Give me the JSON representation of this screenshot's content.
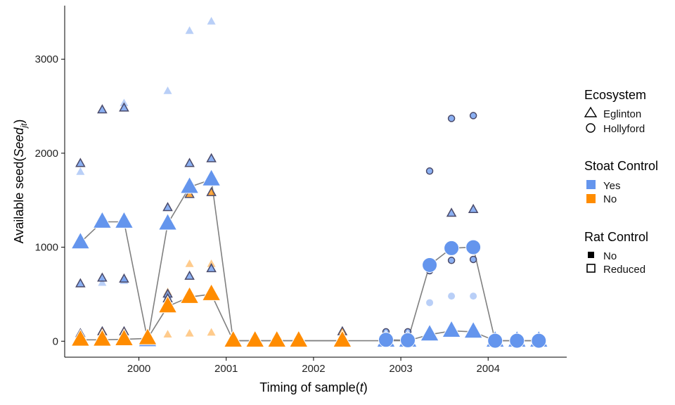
{
  "chart_data": {
    "type": "scatter",
    "title": "",
    "xlabel": "Timing of sample",
    "xlabel_symbol": "t",
    "ylabel": "Available seed",
    "ylabel_symbol": "Seed",
    "ylabel_subscript": "jt",
    "xlim": [
      1999.15,
      2004.9
    ],
    "ylim": [
      -170,
      3570
    ],
    "x_ticks": [
      2000,
      2001,
      2002,
      2003,
      2004
    ],
    "x_tick_labels": [
      "2000",
      "2001",
      "2002",
      "2003",
      "2004"
    ],
    "y_ticks": [
      0,
      1000,
      2000,
      3000
    ],
    "y_tick_labels": [
      "0",
      "1000",
      "2000",
      "3000"
    ],
    "grid": false,
    "legend_position": "right",
    "colors": {
      "Yes": "#6495ED",
      "No": "#FF8C00",
      "line": "#808080",
      "outline": "#4a4a6a"
    },
    "legend": {
      "ecosystem": {
        "title": "Ecosystem",
        "items": [
          {
            "label": "Eglinton",
            "shape": "triangle"
          },
          {
            "label": "Hollyford",
            "shape": "circle"
          }
        ]
      },
      "stoat": {
        "title": "Stoat Control",
        "items": [
          {
            "label": "Yes",
            "color": "#6495ED"
          },
          {
            "label": "No",
            "color": "#FF8C00"
          }
        ]
      },
      "rat": {
        "title": "Rat Control",
        "items": [
          {
            "label": "No",
            "style": "filled"
          },
          {
            "label": "Reduced",
            "style": "open"
          }
        ]
      }
    },
    "series": [
      {
        "ecosystem": "Eglinton",
        "stoat_control": "Yes",
        "mean": [
          [
            1999.33,
            1050
          ],
          [
            1999.58,
            1270
          ],
          [
            1999.83,
            1270
          ],
          [
            2000.1,
            10
          ],
          [
            2000.33,
            1250
          ],
          [
            2000.58,
            1640
          ],
          [
            2000.83,
            1720
          ],
          [
            2001.08,
            5
          ],
          [
            2001.33,
            5
          ],
          [
            2001.58,
            5
          ],
          [
            2001.83,
            5
          ],
          [
            2002.33,
            5
          ],
          [
            2002.83,
            5
          ],
          [
            2003.08,
            5
          ],
          [
            2003.33,
            70
          ],
          [
            2003.58,
            110
          ],
          [
            2003.83,
            100
          ],
          [
            2004.08,
            5
          ],
          [
            2004.33,
            5
          ],
          [
            2004.58,
            5
          ]
        ],
        "obs_rat_no": [
          [
            1999.33,
            1800
          ],
          [
            1999.58,
            620
          ],
          [
            1999.83,
            2530
          ],
          [
            1999.83,
            640
          ],
          [
            2000.33,
            2660
          ],
          [
            2000.33,
            480
          ],
          [
            2000.58,
            3300
          ],
          [
            2000.83,
            3400
          ]
        ],
        "obs_rat_reduced": [
          [
            1999.33,
            1890
          ],
          [
            1999.33,
            610
          ],
          [
            1999.58,
            2460
          ],
          [
            1999.58,
            670
          ],
          [
            1999.83,
            2480
          ],
          [
            1999.83,
            660
          ],
          [
            2000.33,
            1420
          ],
          [
            2000.33,
            500
          ],
          [
            2000.58,
            1890
          ],
          [
            2000.58,
            690
          ],
          [
            2000.83,
            1940
          ],
          [
            2000.83,
            770
          ],
          [
            2003.58,
            1360
          ],
          [
            2003.83,
            1400
          ]
        ]
      },
      {
        "ecosystem": "Eglinton",
        "stoat_control": "No",
        "mean": [
          [
            1999.33,
            15
          ],
          [
            1999.58,
            15
          ],
          [
            1999.83,
            20
          ],
          [
            2000.1,
            30
          ],
          [
            2000.33,
            370
          ],
          [
            2000.58,
            470
          ],
          [
            2000.83,
            500
          ],
          [
            2001.08,
            5
          ],
          [
            2001.33,
            5
          ],
          [
            2001.58,
            5
          ],
          [
            2001.83,
            5
          ],
          [
            2002.33,
            5
          ]
        ],
        "obs_rat_no": [
          [
            2000.33,
            70
          ],
          [
            2000.33,
            520
          ],
          [
            2000.58,
            820
          ],
          [
            2000.58,
            80
          ],
          [
            2000.83,
            820
          ],
          [
            2000.83,
            90
          ]
        ],
        "obs_rat_reduced": [
          [
            1999.33,
            80
          ],
          [
            1999.58,
            100
          ],
          [
            1999.83,
            100
          ],
          [
            2000.33,
            450
          ],
          [
            2000.58,
            1560
          ],
          [
            2000.83,
            1580
          ],
          [
            2002.33,
            100
          ]
        ]
      },
      {
        "ecosystem": "Hollyford",
        "stoat_control": "Yes",
        "mean": [
          [
            2002.83,
            15
          ],
          [
            2003.08,
            10
          ],
          [
            2003.33,
            810
          ],
          [
            2003.58,
            990
          ],
          [
            2003.83,
            1000
          ],
          [
            2004.08,
            5
          ],
          [
            2004.33,
            5
          ],
          [
            2004.58,
            5
          ]
        ],
        "obs_rat_no": [
          [
            2003.33,
            410
          ],
          [
            2003.58,
            480
          ],
          [
            2003.83,
            480
          ]
        ],
        "obs_rat_reduced": [
          [
            2002.83,
            100
          ],
          [
            2003.08,
            100
          ],
          [
            2003.33,
            1810
          ],
          [
            2003.33,
            750
          ],
          [
            2003.58,
            2370
          ],
          [
            2003.58,
            860
          ],
          [
            2003.83,
            2400
          ],
          [
            2003.83,
            870
          ]
        ]
      }
    ]
  }
}
